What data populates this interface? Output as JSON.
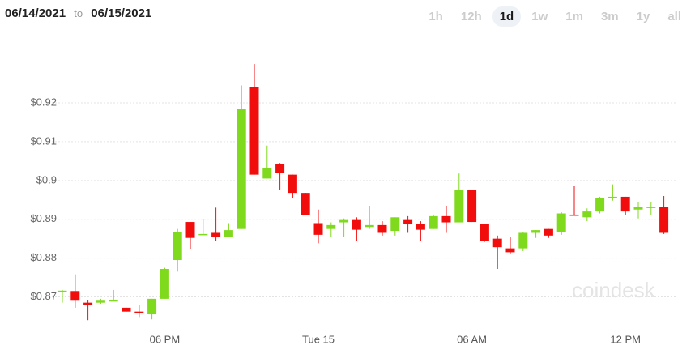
{
  "range_from": "06/14/2021",
  "range_sep": "to",
  "range_to": "06/15/2021",
  "intervals": [
    "1h",
    "12h",
    "1d",
    "1w",
    "1m",
    "3m",
    "1y",
    "all"
  ],
  "selected_interval": 2,
  "chart_data": {
    "type": "candlestick",
    "watermark": "coindesk",
    "up_color": "#7fd91c",
    "down_color": "#f20d0d",
    "grid": true,
    "categories": [
      null,
      null,
      null,
      null,
      null,
      null,
      null,
      null,
      "06 PM",
      null,
      null,
      null,
      null,
      null,
      null,
      null,
      null,
      null,
      null,
      null,
      "Tue 15",
      null,
      null,
      null,
      null,
      null,
      null,
      null,
      null,
      null,
      null,
      null,
      "06 AM",
      null,
      null,
      null,
      null,
      null,
      null,
      null,
      null,
      null,
      null,
      null,
      "12 PM",
      null,
      null,
      null
    ],
    "open": [
      0.8712,
      0.8715,
      0.8685,
      0.8685,
      0.869,
      0.8672,
      0.8662,
      0.8655,
      0.8695,
      0.8795,
      0.8893,
      0.8862,
      0.8865,
      0.8855,
      0.8875,
      0.924,
      0.9005,
      0.9042,
      0.9015,
      0.8968,
      0.889,
      0.8875,
      0.8892,
      0.8898,
      0.888,
      0.8885,
      0.887,
      0.8898,
      0.8888,
      0.8875,
      0.8908,
      0.8892,
      0.8975,
      0.8888,
      0.885,
      0.8825,
      0.8825,
      0.8865,
      0.8875,
      0.8868,
      0.8912,
      0.8905,
      0.892,
      0.8958,
      0.8958,
      0.8925,
      0.893,
      0.8932
    ],
    "high": [
      0.8718,
      0.8758,
      0.8692,
      0.8695,
      0.8718,
      0.8672,
      0.8678,
      0.8695,
      0.8775,
      0.8875,
      0.8893,
      0.89,
      0.893,
      0.889,
      0.9245,
      0.93,
      0.909,
      0.9045,
      0.9015,
      0.8968,
      0.8925,
      0.8892,
      0.8902,
      0.8905,
      0.8935,
      0.8895,
      0.8905,
      0.8908,
      0.8895,
      0.8912,
      0.8935,
      0.9018,
      0.8975,
      0.8888,
      0.8858,
      0.8855,
      0.8868,
      0.8872,
      0.8875,
      0.8918,
      0.8985,
      0.8928,
      0.8958,
      0.899,
      0.8958,
      0.8945,
      0.8945,
      0.896
    ],
    "low": [
      0.8685,
      0.8672,
      0.864,
      0.8682,
      0.869,
      0.8662,
      0.8648,
      0.8642,
      0.8695,
      0.8765,
      0.8822,
      0.8862,
      0.8843,
      0.8855,
      0.8875,
      0.9015,
      0.9005,
      0.8975,
      0.8955,
      0.891,
      0.8838,
      0.8855,
      0.8855,
      0.8845,
      0.8875,
      0.8858,
      0.8858,
      0.8865,
      0.8845,
      0.8875,
      0.8865,
      0.8892,
      0.8893,
      0.8842,
      0.8772,
      0.8812,
      0.8818,
      0.8852,
      0.8852,
      0.886,
      0.891,
      0.8895,
      0.8915,
      0.8948,
      0.8912,
      0.8902,
      0.8912,
      0.8862
    ],
    "close": [
      0.8716,
      0.869,
      0.868,
      0.869,
      0.8691,
      0.8662,
      0.8659,
      0.8695,
      0.8772,
      0.8868,
      0.8852,
      0.8862,
      0.8855,
      0.8872,
      0.9185,
      0.9015,
      0.9032,
      0.902,
      0.8968,
      0.891,
      0.886,
      0.8885,
      0.8898,
      0.8873,
      0.8885,
      0.8865,
      0.8905,
      0.8888,
      0.8873,
      0.8908,
      0.8892,
      0.8975,
      0.8893,
      0.8845,
      0.8828,
      0.8815,
      0.8865,
      0.8872,
      0.8858,
      0.8915,
      0.891,
      0.892,
      0.8955,
      0.8958,
      0.892,
      0.8932,
      0.8932,
      0.8865
    ],
    "ylim": [
      0.863,
      0.934
    ],
    "yticks": [
      {
        "value": 0.87,
        "label": "$0.87"
      },
      {
        "value": 0.88,
        "label": "$0.88"
      },
      {
        "value": 0.89,
        "label": "$0.89"
      },
      {
        "value": 0.9,
        "label": "$0.9"
      },
      {
        "value": 0.91,
        "label": "$0.91"
      },
      {
        "value": 0.92,
        "label": "$0.92"
      }
    ]
  }
}
